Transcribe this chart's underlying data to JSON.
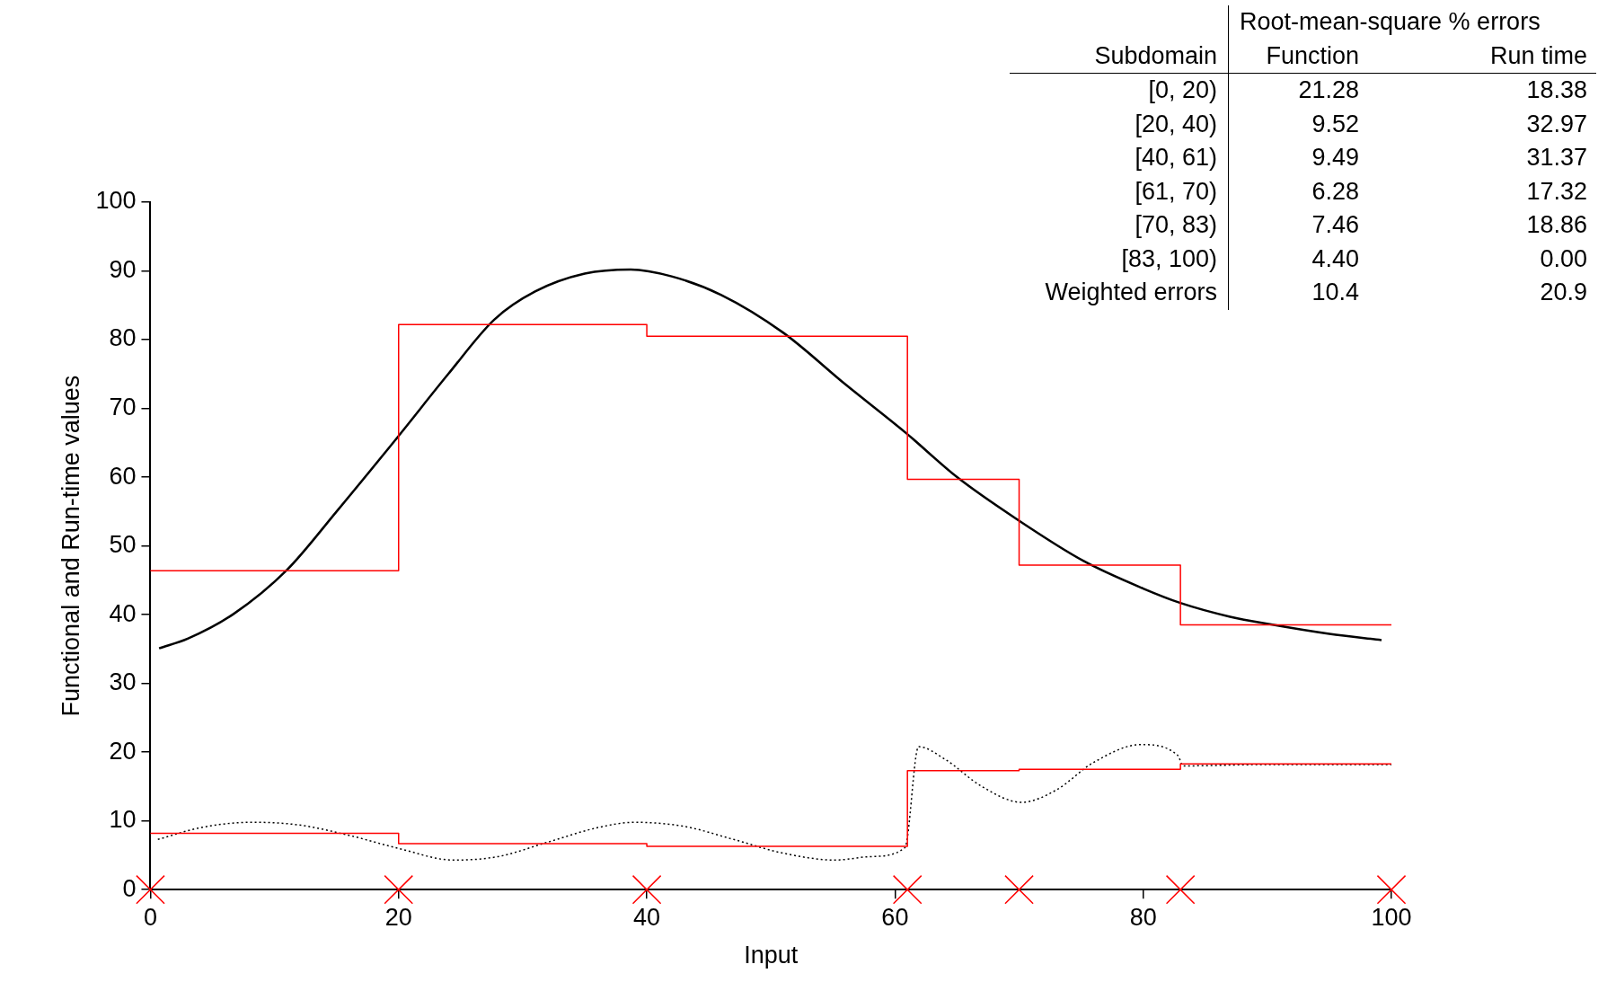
{
  "chart_data": {
    "type": "line",
    "xlabel": "Input",
    "ylabel": "Functional and Run-time values",
    "xlim": [
      0,
      100
    ],
    "ylim": [
      0,
      100
    ],
    "xticks": [
      0,
      20,
      40,
      60,
      80,
      100
    ],
    "yticks": [
      0,
      10,
      20,
      30,
      40,
      50,
      60,
      70,
      80,
      90,
      100
    ],
    "grid": false,
    "legend": false,
    "series": [
      {
        "type": "line",
        "color": "#000000",
        "line_style": "solid",
        "marker": "none",
        "x": [
          0.7,
          3,
          6.7,
          11,
          15,
          20,
          24,
          27.7,
          31,
          35,
          38.7,
          42,
          46,
          51,
          56,
          60.9,
          65,
          69.8,
          75.2,
          80,
          83,
          87,
          90.2,
          95,
          99.2
        ],
        "values": [
          35.1,
          36.5,
          40.1,
          46.5,
          55,
          66,
          75,
          82.9,
          87,
          89.6,
          90.2,
          89.2,
          86.5,
          81,
          73.5,
          66.4,
          60,
          53.9,
          47.8,
          43.8,
          41.7,
          39.7,
          38.6,
          37.2,
          36.3
        ]
      },
      {
        "type": "line",
        "color": "#000000",
        "line_style": "dotted",
        "marker": "none",
        "x": [
          0.6,
          4,
          8.1,
          12,
          16,
          20,
          24.4,
          28,
          32,
          36,
          39,
          43,
          47,
          51,
          55.2,
          58,
          60.8,
          61.9,
          64,
          67,
          70.2,
          73,
          76,
          79.8,
          82.8,
          83.2,
          90,
          100
        ],
        "values": [
          7.3,
          9,
          9.8,
          9.4,
          7.9,
          6,
          4.3,
          4.8,
          6.9,
          9,
          9.8,
          9.2,
          7.3,
          5.3,
          4.3,
          4.8,
          6.1,
          20.8,
          19,
          15,
          12.7,
          14.5,
          18.5,
          21.1,
          19.5,
          18,
          18.2,
          18.2
        ]
      },
      {
        "type": "step",
        "color": "#ff0000",
        "line_style": "solid",
        "marker": "none",
        "x": [
          0,
          20,
          40,
          61,
          70,
          83,
          100
        ],
        "values": [
          46.4,
          82.2,
          80.5,
          59.7,
          47.2,
          38.5,
          38.5
        ]
      },
      {
        "type": "step",
        "color": "#ff0000",
        "line_style": "solid",
        "marker": "none",
        "x": [
          0,
          20,
          40,
          61,
          70,
          83,
          100
        ],
        "values": [
          8.2,
          6.7,
          6.3,
          17.3,
          17.5,
          18.3,
          18.3
        ]
      },
      {
        "type": "scatter",
        "color": "#ff0000",
        "marker": "cross",
        "x": [
          0,
          20,
          40,
          61,
          70,
          83,
          100
        ],
        "values": [
          0,
          0,
          0,
          0,
          0,
          0,
          0
        ]
      }
    ],
    "annotations": [
      "Root-mean-square % errors",
      "Subdomain",
      "Function",
      "Run time",
      "[0, 20)",
      "21.28",
      "18.38",
      "[20, 40)",
      "9.52",
      "32.97",
      "[40, 61)",
      "9.49",
      "31.37",
      "[61, 70)",
      "6.28",
      "17.32",
      "[70, 83)",
      "7.46",
      "18.86",
      "[83, 100)",
      "4.40",
      "0.00",
      "Weighted errors",
      "10.4",
      "20.9"
    ]
  }
}
